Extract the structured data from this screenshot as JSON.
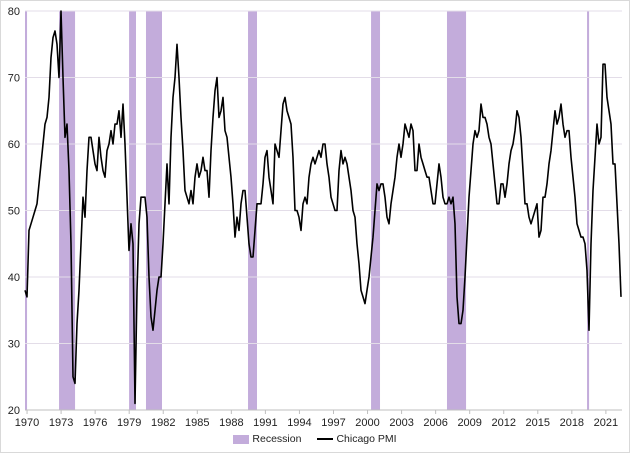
{
  "chart_data": {
    "type": "line",
    "title": "",
    "xlabel": "",
    "ylabel": "",
    "xlim": [
      1969.82,
      2022.42
    ],
    "ylim": [
      20,
      80
    ],
    "yticks": [
      20,
      30,
      40,
      50,
      60,
      70,
      80
    ],
    "xticks": [
      1970,
      1973,
      1976,
      1979,
      1982,
      1985,
      1988,
      1991,
      1994,
      1997,
      2000,
      2003,
      2006,
      2009,
      2012,
      2015,
      2018,
      2021
    ],
    "grid": true,
    "legend_position": "bottom",
    "legend": [
      "Recession",
      "Chicago PMI"
    ],
    "colors": {
      "recession": "#c3acdb",
      "line": "#000000",
      "grid": "#e3dde8"
    },
    "recessions": [
      [
        1969.82,
        1970.0
      ],
      [
        1972.82,
        1974.23
      ],
      [
        1978.99,
        1979.6
      ],
      [
        1980.48,
        1981.89
      ],
      [
        1989.47,
        1990.26
      ],
      [
        2000.31,
        2001.1
      ],
      [
        2007.0,
        2008.68
      ],
      [
        2019.34,
        2019.52
      ]
    ],
    "series": [
      {
        "name": "Chicago PMI",
        "x_start": 1969.82,
        "x_step": 0.1762,
        "values": [
          38,
          37,
          47,
          48,
          49,
          50,
          51,
          54,
          57,
          60,
          63,
          64,
          67,
          73,
          76,
          77,
          75,
          70,
          80,
          70,
          61,
          63,
          56,
          45,
          25,
          24,
          33,
          38,
          45,
          52,
          49,
          56,
          61,
          61,
          59,
          57,
          56,
          61,
          58,
          56,
          55,
          59,
          60,
          62,
          60,
          63,
          63,
          65,
          61,
          66,
          60,
          52,
          44,
          48,
          45,
          21,
          38,
          48,
          52,
          52,
          52,
          49,
          40,
          34,
          32,
          35,
          38,
          40,
          40,
          45,
          51,
          57,
          51,
          61,
          67,
          70,
          75,
          70,
          64,
          59,
          53,
          52,
          51,
          53,
          51,
          55,
          57,
          55,
          56,
          58,
          56,
          56,
          52,
          59,
          64,
          68,
          70,
          64,
          65,
          67,
          62,
          61,
          58,
          55,
          51,
          46,
          49,
          47,
          51,
          53,
          53,
          49,
          45,
          43,
          43,
          47,
          51,
          51,
          51,
          54,
          58,
          59,
          55,
          53,
          51,
          60,
          59,
          58,
          62,
          66,
          67,
          65,
          64,
          63,
          58,
          50,
          50,
          49,
          47,
          51,
          52,
          51,
          55,
          57,
          58,
          57,
          58,
          59,
          58,
          60,
          60,
          57,
          55,
          52,
          51,
          50,
          50,
          56,
          59,
          57,
          58,
          57,
          55,
          53,
          50,
          49,
          45,
          42,
          38,
          37,
          36,
          38,
          40,
          43,
          46,
          50,
          54,
          53,
          54,
          54,
          52,
          49,
          48,
          51,
          53,
          55,
          58,
          60,
          58,
          60,
          63,
          62,
          61,
          63,
          62,
          56,
          56,
          60,
          58,
          57,
          56,
          55,
          55,
          53,
          51,
          51,
          54,
          57,
          55,
          52,
          51,
          51,
          52,
          51,
          52,
          48,
          37,
          33,
          33,
          35,
          40,
          46,
          52,
          56,
          60,
          62,
          61,
          62,
          66,
          64,
          64,
          63,
          61,
          60,
          57,
          54,
          51,
          51,
          54,
          54,
          52,
          54,
          57,
          59,
          60,
          62,
          65,
          64,
          61,
          56,
          51,
          51,
          49,
          48,
          49,
          50,
          51,
          46,
          47,
          52,
          52,
          54,
          57,
          59,
          62,
          65,
          63,
          64,
          66,
          63,
          61,
          62,
          62,
          58,
          55,
          52,
          48,
          47,
          46,
          46,
          45,
          41,
          32,
          45,
          53,
          58,
          63,
          60,
          61,
          72,
          72,
          67,
          65,
          63,
          57,
          57,
          51,
          45,
          37
        ]
      }
    ]
  }
}
